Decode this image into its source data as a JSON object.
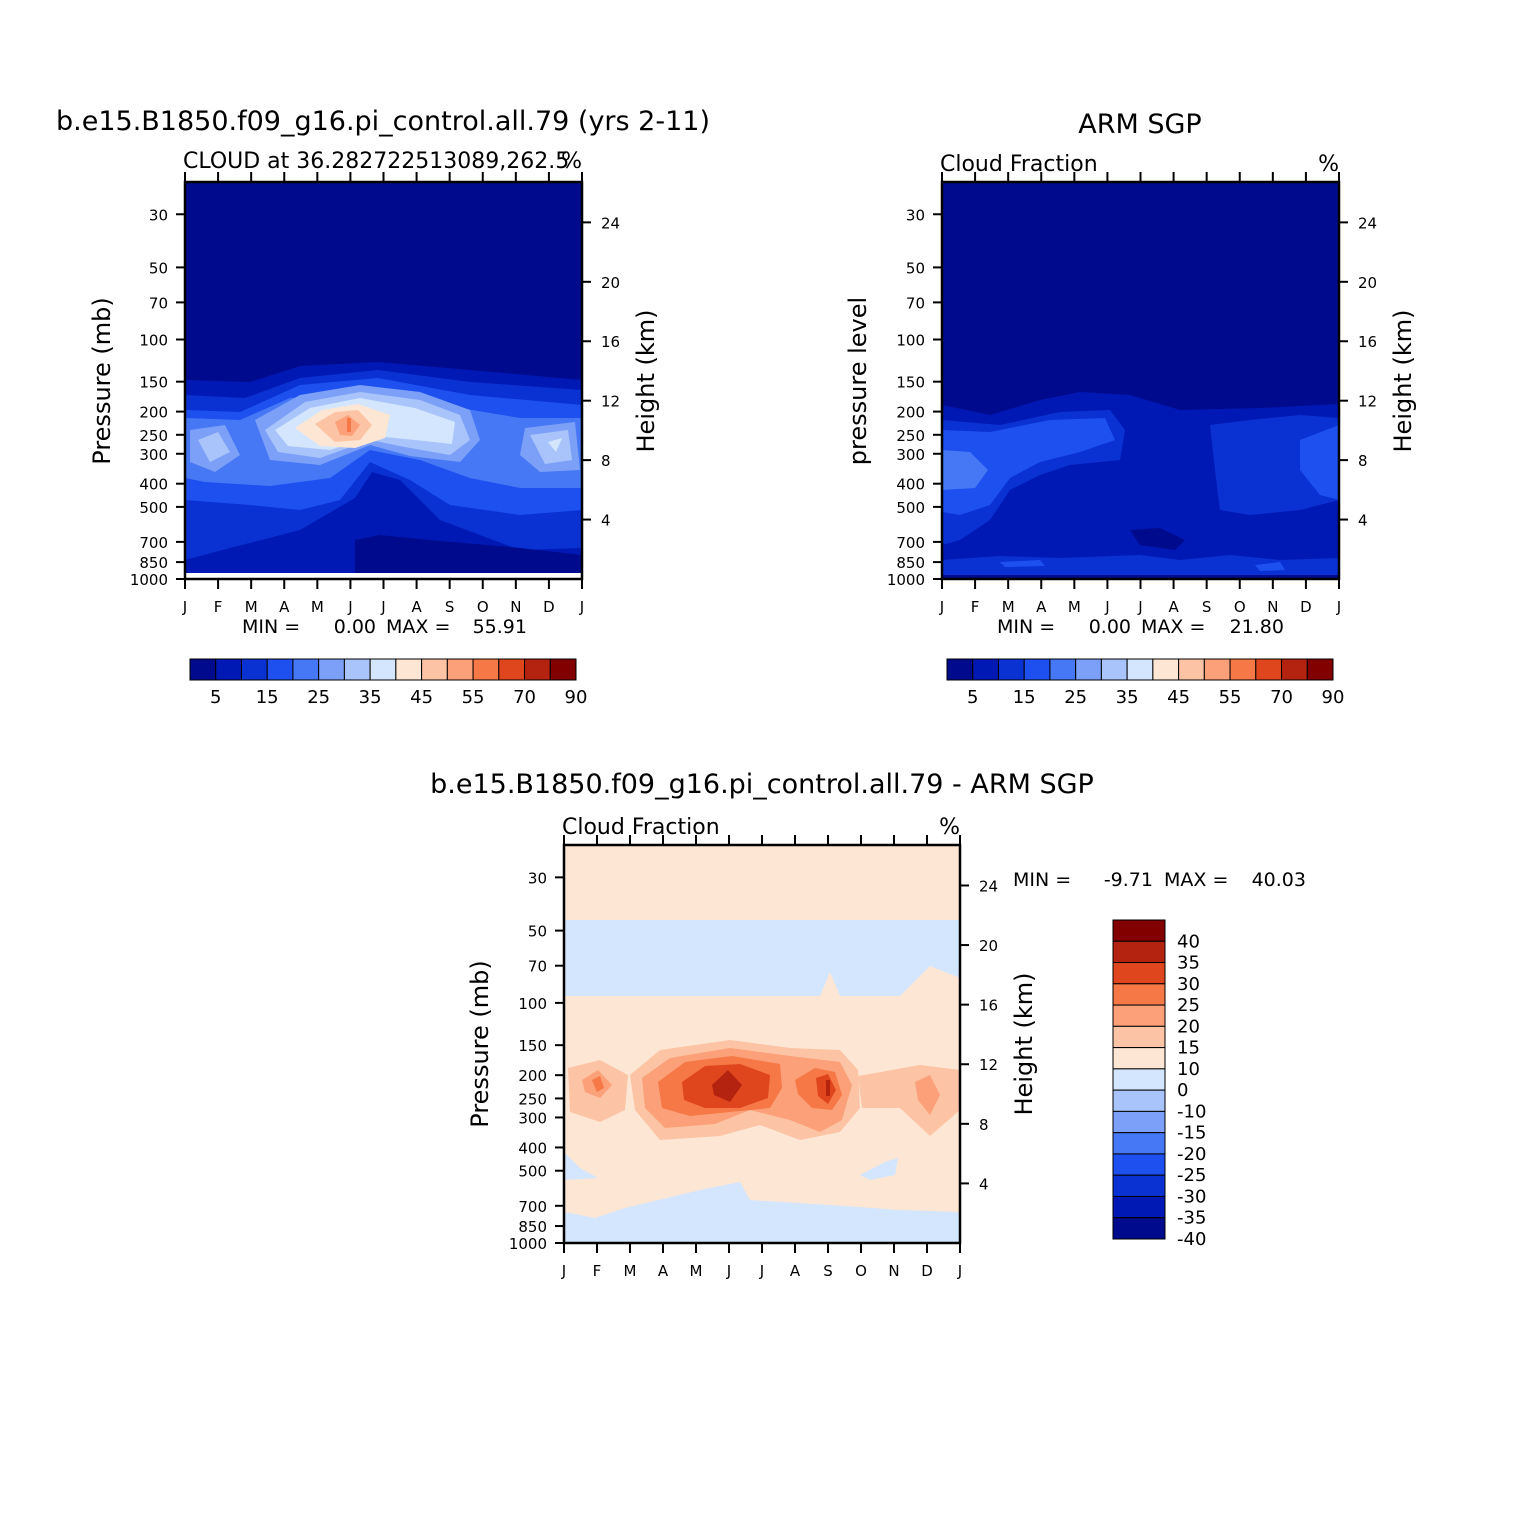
{
  "chart_data": [
    {
      "type": "heatmap",
      "title": "b.e15.B1850.f09_g16.pi_control.all.79 (yrs 2-11)",
      "subtitle_left": "CLOUD at 36.282722513089,262.5",
      "subtitle_right": "%",
      "ylabel": "Pressure (mb)",
      "ylabel_right": "Height (km)",
      "x_ticks": [
        "J",
        "F",
        "M",
        "A",
        "M",
        "J",
        "J",
        "A",
        "S",
        "O",
        "N",
        "D",
        "J"
      ],
      "y_ticks": [
        "30",
        "50",
        "70",
        "100",
        "150",
        "200",
        "250",
        "300",
        "400",
        "500",
        "700",
        "850",
        "1000"
      ],
      "y_ticks_right": [
        "24",
        "20",
        "16",
        "12",
        "8",
        "4"
      ],
      "ylim": [
        1000,
        22
      ],
      "stats": {
        "min_label": "MIN =",
        "min": "0.00",
        "max_label": "MAX =",
        "max": "55.91"
      },
      "colorbar": {
        "orientation": "horizontal",
        "tick_labels": [
          "5",
          "15",
          "25",
          "35",
          "45",
          "55",
          "70",
          "90"
        ],
        "colors": [
          "#000a8c",
          "#0019b4",
          "#0a32d2",
          "#1e50f0",
          "#4678f5",
          "#7ca0f8",
          "#a8c4fb",
          "#d4e6fd",
          "#fde6d4",
          "#fcc4a4",
          "#fba078",
          "#f57846",
          "#e0461e",
          "#b4230f",
          "#820000"
        ]
      },
      "max_cell": {
        "month": "Jun",
        "pressure_mb": 250,
        "value": 55.91
      },
      "min_value": 0.0
    },
    {
      "type": "heatmap",
      "title": "ARM SGP",
      "subtitle_left": "Cloud Fraction",
      "subtitle_right": "%",
      "ylabel": "pressure level",
      "ylabel_right": "Height (km)",
      "x_ticks": [
        "J",
        "F",
        "M",
        "A",
        "M",
        "J",
        "J",
        "A",
        "S",
        "O",
        "N",
        "D",
        "J"
      ],
      "y_ticks": [
        "30",
        "50",
        "70",
        "100",
        "150",
        "200",
        "250",
        "300",
        "400",
        "500",
        "700",
        "850",
        "1000"
      ],
      "y_ticks_right": [
        "24",
        "20",
        "16",
        "12",
        "8",
        "4"
      ],
      "ylim": [
        1000,
        22
      ],
      "stats": {
        "min_label": "MIN =",
        "min": "0.00",
        "max_label": "MAX =",
        "max": "21.80"
      },
      "colorbar": {
        "orientation": "horizontal",
        "tick_labels": [
          "5",
          "15",
          "25",
          "35",
          "45",
          "55",
          "70",
          "90"
        ],
        "colors": [
          "#000a8c",
          "#0019b4",
          "#0a32d2",
          "#1e50f0",
          "#4678f5",
          "#7ca0f8",
          "#a8c4fb",
          "#d4e6fd",
          "#fde6d4",
          "#fcc4a4",
          "#fba078",
          "#f57846",
          "#e0461e",
          "#b4230f",
          "#820000"
        ]
      }
    },
    {
      "type": "heatmap",
      "title": "b.e15.B1850.f09_g16.pi_control.all.79 - ARM SGP",
      "subtitle_left": "Cloud Fraction",
      "subtitle_right": "%",
      "ylabel": "Pressure (mb)",
      "ylabel_right": "Height (km)",
      "x_ticks": [
        "J",
        "F",
        "M",
        "A",
        "M",
        "J",
        "J",
        "A",
        "S",
        "O",
        "N",
        "D",
        "J"
      ],
      "y_ticks": [
        "30",
        "50",
        "70",
        "100",
        "150",
        "200",
        "250",
        "300",
        "400",
        "500",
        "700",
        "850",
        "1000"
      ],
      "y_ticks_right": [
        "24",
        "20",
        "16",
        "12",
        "8",
        "4"
      ],
      "ylim": [
        1000,
        22
      ],
      "stats": {
        "min_label": "MIN =",
        "min": "-9.71",
        "max_label": "MAX =",
        "max": "40.03"
      },
      "colorbar": {
        "orientation": "vertical",
        "tick_labels": [
          "40",
          "35",
          "30",
          "25",
          "20",
          "15",
          "10",
          "0",
          "-10",
          "-15",
          "-20",
          "-25",
          "-30",
          "-35",
          "-40"
        ],
        "colors": [
          "#820000",
          "#b4230f",
          "#e0461e",
          "#f57846",
          "#fba078",
          "#fcc4a4",
          "#fde6d4",
          "#d4e6fd",
          "#a8c4fb",
          "#7ca0f8",
          "#4678f5",
          "#1e50f0",
          "#0a32d2",
          "#0019b4",
          "#000a8c"
        ]
      }
    }
  ]
}
